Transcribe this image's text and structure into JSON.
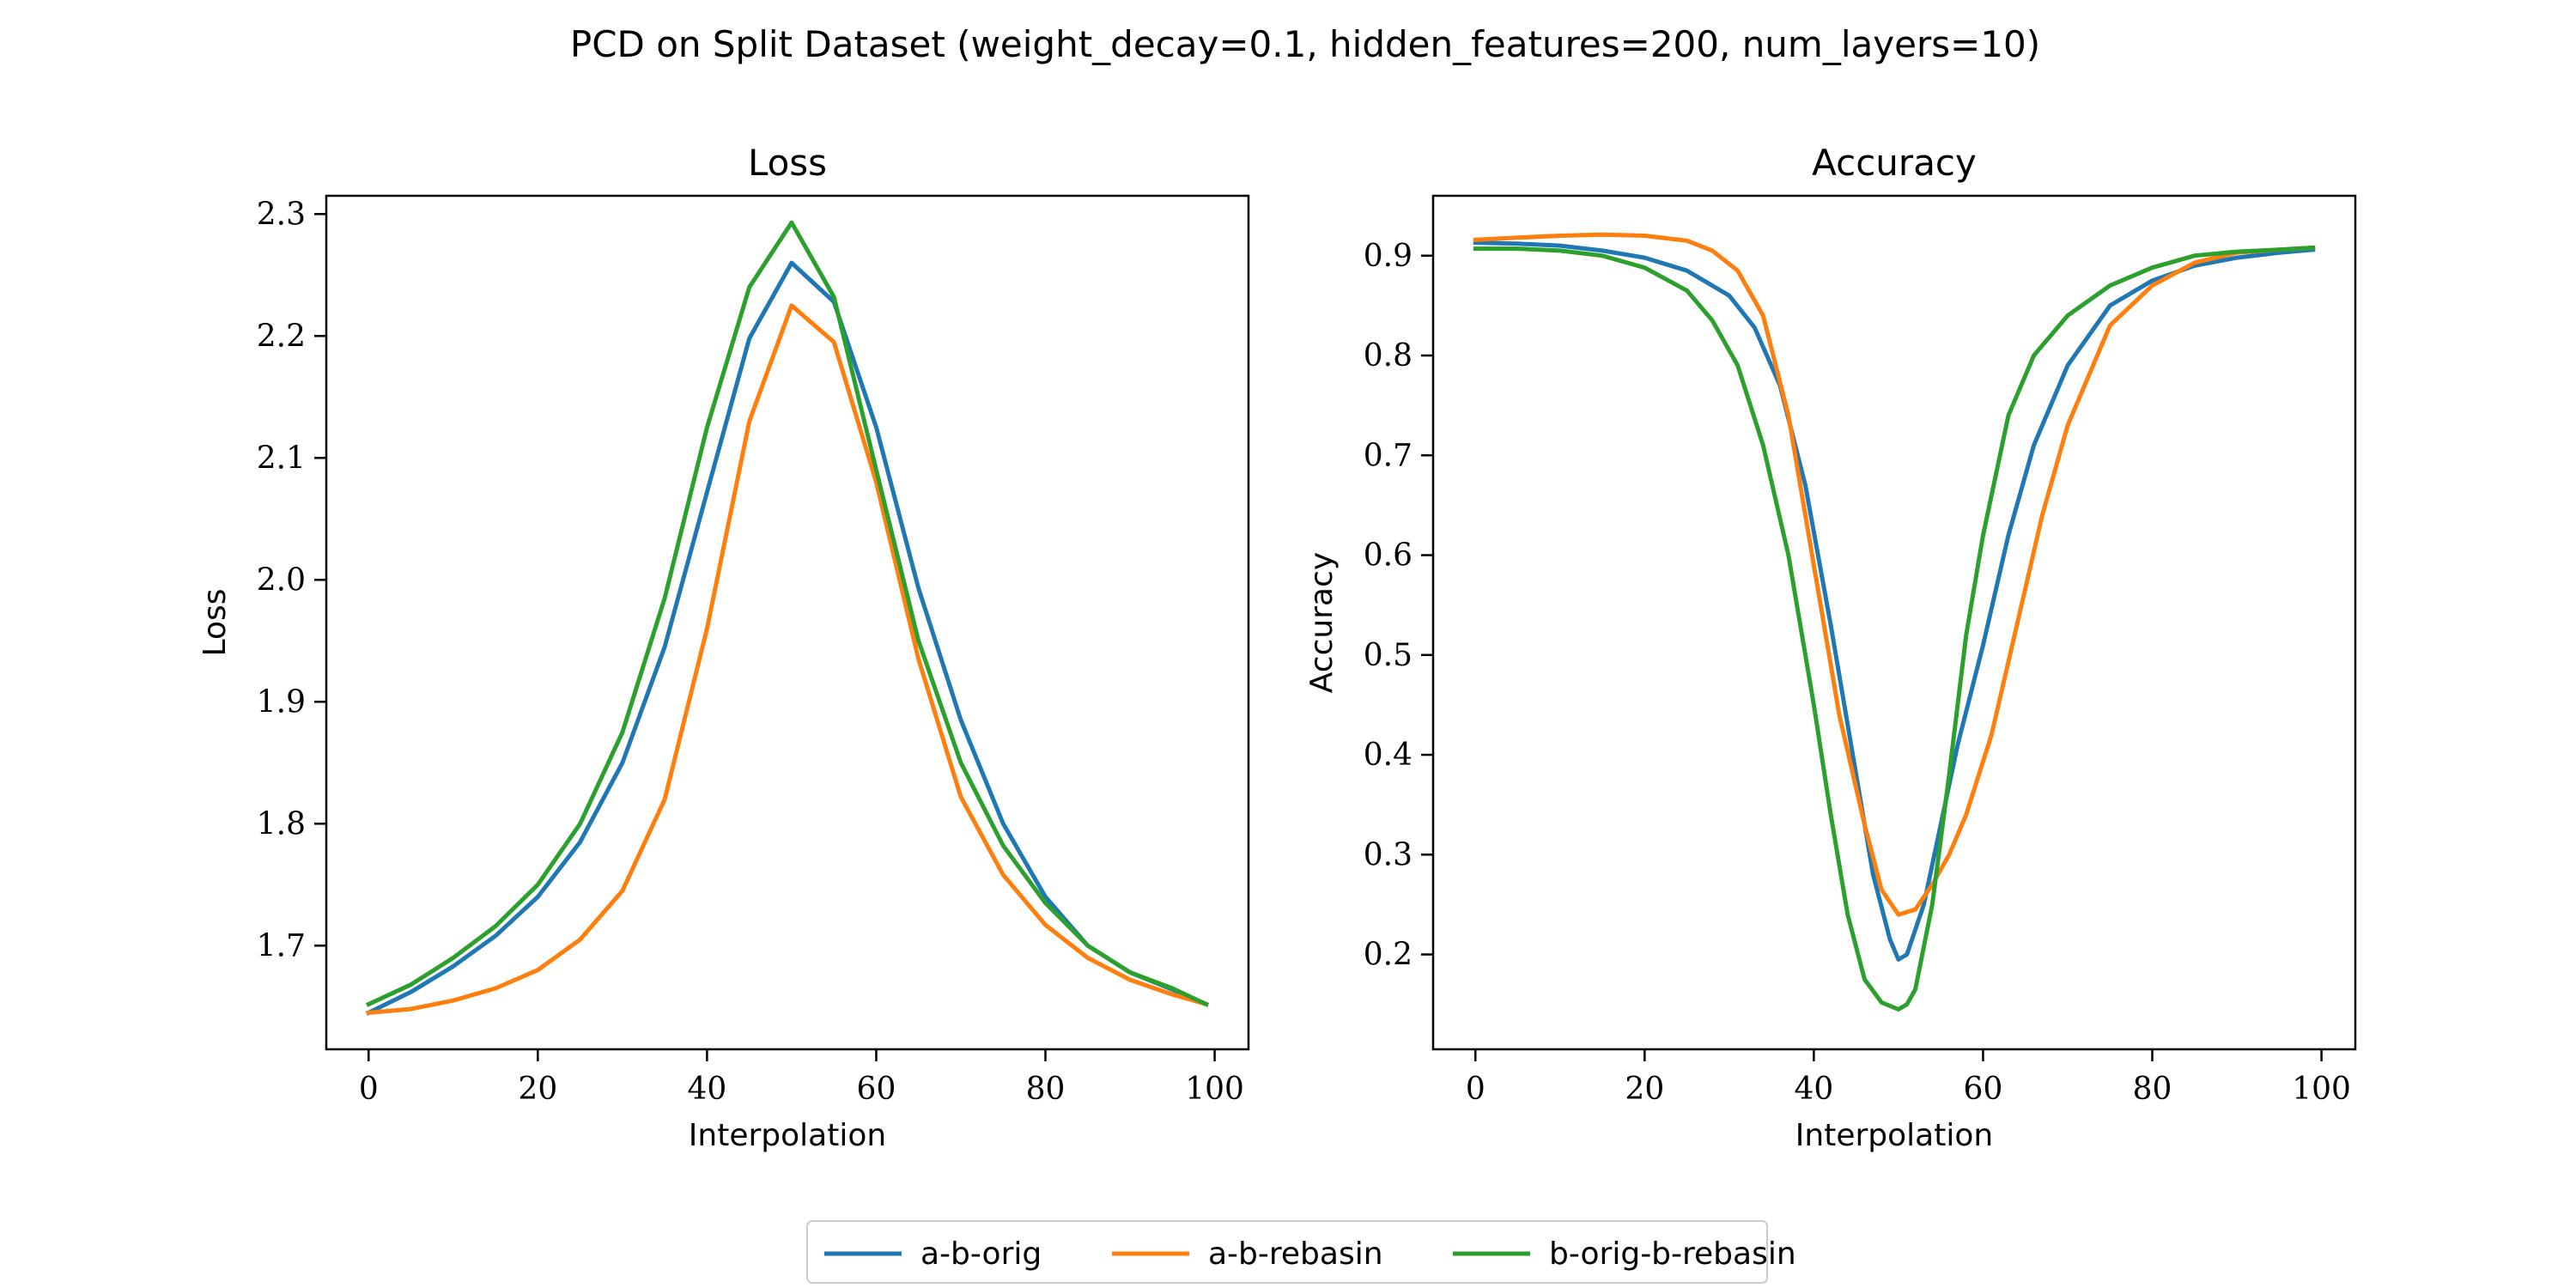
{
  "suptitle": "PCD on Split Dataset (weight_decay=0.1, hidden_features=200, num_layers=10)",
  "colors": {
    "a-b-orig": "#1f77b4",
    "a-b-rebasin": "#ff7f0e",
    "b-orig-b-rebasin": "#2ca02c"
  },
  "legend": {
    "placement": "bottom-center",
    "entries": [
      "a-b-orig",
      "a-b-rebasin",
      "b-orig-b-rebasin"
    ]
  },
  "chart_data": [
    {
      "type": "line",
      "title": "Loss",
      "xlabel": "Interpolation",
      "ylabel": "Loss",
      "xlim": [
        -5,
        104
      ],
      "ylim": [
        1.615,
        2.315
      ],
      "xticks": [
        0,
        20,
        40,
        60,
        80,
        100
      ],
      "yticks": [
        1.7,
        1.8,
        1.9,
        2.0,
        2.1,
        2.2,
        2.3
      ],
      "ytick_labels": [
        "1.7",
        "1.8",
        "1.9",
        "2.0",
        "2.1",
        "2.2",
        "2.3"
      ],
      "grid": false,
      "series": [
        {
          "name": "a-b-orig",
          "x": [
            0,
            5,
            10,
            15,
            20,
            25,
            30,
            35,
            40,
            45,
            50,
            55,
            60,
            65,
            70,
            75,
            80,
            85,
            90,
            95,
            99
          ],
          "y": [
            1.645,
            1.662,
            1.683,
            1.708,
            1.74,
            1.785,
            1.85,
            1.945,
            2.072,
            2.198,
            2.26,
            2.228,
            2.125,
            1.993,
            1.885,
            1.8,
            1.74,
            1.7,
            1.678,
            1.664,
            1.652
          ]
        },
        {
          "name": "a-b-rebasin",
          "x": [
            0,
            5,
            10,
            15,
            20,
            25,
            30,
            35,
            40,
            45,
            50,
            55,
            60,
            65,
            70,
            75,
            80,
            85,
            90,
            95,
            99
          ],
          "y": [
            1.645,
            1.648,
            1.655,
            1.665,
            1.68,
            1.705,
            1.745,
            1.82,
            1.96,
            2.13,
            2.225,
            2.195,
            2.08,
            1.935,
            1.822,
            1.758,
            1.717,
            1.69,
            1.672,
            1.66,
            1.652
          ]
        },
        {
          "name": "b-orig-b-rebasin",
          "x": [
            0,
            5,
            10,
            15,
            20,
            25,
            30,
            35,
            40,
            45,
            50,
            55,
            60,
            65,
            70,
            75,
            80,
            85,
            90,
            95,
            99
          ],
          "y": [
            1.652,
            1.668,
            1.69,
            1.716,
            1.75,
            1.8,
            1.875,
            1.985,
            2.125,
            2.24,
            2.293,
            2.232,
            2.09,
            1.95,
            1.85,
            1.782,
            1.735,
            1.7,
            1.678,
            1.665,
            1.652
          ]
        }
      ]
    },
    {
      "type": "line",
      "title": "Accuracy",
      "xlabel": "Interpolation",
      "ylabel": "Accuracy",
      "xlim": [
        -5,
        104
      ],
      "ylim": [
        0.105,
        0.96
      ],
      "xticks": [
        0,
        20,
        40,
        60,
        80,
        100
      ],
      "yticks": [
        0.2,
        0.3,
        0.4,
        0.5,
        0.6,
        0.7,
        0.8,
        0.9
      ],
      "ytick_labels": [
        "0.2",
        "0.3",
        "0.4",
        "0.5",
        "0.6",
        "0.7",
        "0.8",
        "0.9"
      ],
      "grid": false,
      "series": [
        {
          "name": "a-b-orig",
          "x": [
            0,
            5,
            10,
            15,
            20,
            25,
            30,
            33,
            36,
            39,
            42,
            45,
            47,
            49,
            50,
            51,
            53,
            55,
            57,
            60,
            63,
            66,
            70,
            75,
            80,
            85,
            90,
            95,
            99
          ],
          "y": [
            0.913,
            0.912,
            0.91,
            0.905,
            0.898,
            0.885,
            0.86,
            0.828,
            0.77,
            0.67,
            0.53,
            0.38,
            0.28,
            0.215,
            0.195,
            0.2,
            0.25,
            0.33,
            0.41,
            0.51,
            0.62,
            0.71,
            0.79,
            0.85,
            0.875,
            0.89,
            0.898,
            0.903,
            0.906
          ]
        },
        {
          "name": "a-b-rebasin",
          "x": [
            0,
            5,
            10,
            15,
            20,
            25,
            28,
            31,
            34,
            37,
            40,
            43,
            46,
            48,
            50,
            52,
            54,
            56,
            58,
            61,
            64,
            67,
            70,
            75,
            80,
            85,
            90,
            95,
            99
          ],
          "y": [
            0.916,
            0.918,
            0.92,
            0.921,
            0.92,
            0.915,
            0.905,
            0.885,
            0.84,
            0.74,
            0.59,
            0.44,
            0.33,
            0.265,
            0.24,
            0.245,
            0.27,
            0.3,
            0.34,
            0.42,
            0.53,
            0.64,
            0.73,
            0.83,
            0.87,
            0.893,
            0.903,
            0.906,
            0.908
          ]
        },
        {
          "name": "b-orig-b-rebasin",
          "x": [
            0,
            5,
            10,
            15,
            20,
            25,
            28,
            31,
            34,
            37,
            40,
            42,
            44,
            46,
            48,
            50,
            51,
            52,
            54,
            56,
            58,
            60,
            63,
            66,
            70,
            75,
            80,
            85,
            90,
            95,
            99
          ],
          "y": [
            0.907,
            0.907,
            0.905,
            0.9,
            0.888,
            0.865,
            0.835,
            0.79,
            0.71,
            0.6,
            0.45,
            0.34,
            0.24,
            0.175,
            0.152,
            0.145,
            0.15,
            0.165,
            0.25,
            0.38,
            0.52,
            0.62,
            0.74,
            0.8,
            0.84,
            0.87,
            0.888,
            0.9,
            0.904,
            0.906,
            0.908
          ]
        }
      ]
    }
  ]
}
